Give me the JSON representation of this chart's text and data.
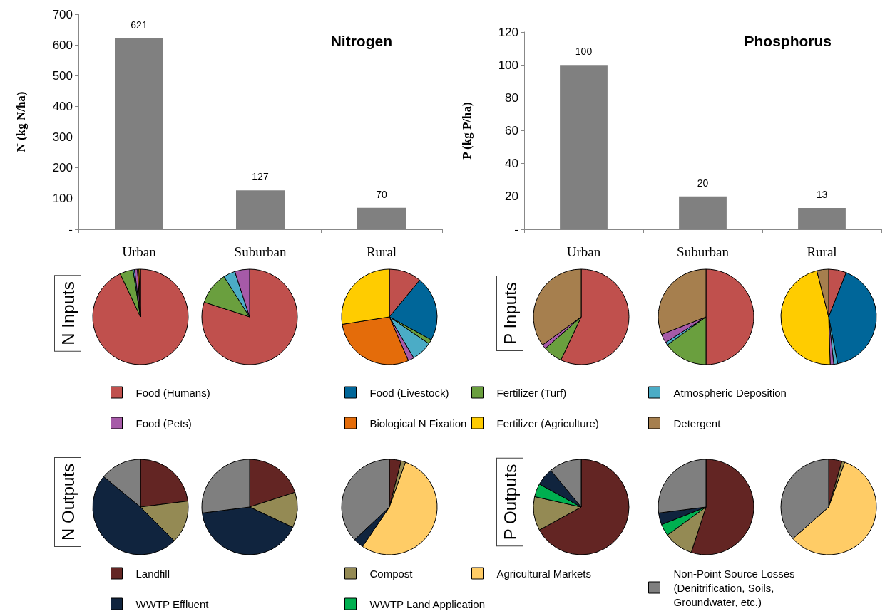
{
  "chart_data": [
    {
      "type": "bar",
      "title": "Nitrogen",
      "ylabel": "N (kg N/ha)",
      "categories": [
        "Urban",
        "Suburban",
        "Rural"
      ],
      "values": [
        621,
        127,
        70
      ],
      "color": "#808080",
      "ylim": [
        0,
        700
      ],
      "yticks": [
        {
          "value": 0,
          "label": "-"
        },
        100,
        200,
        300,
        400,
        500,
        600,
        700
      ],
      "grid": false,
      "data_labels": true
    },
    {
      "type": "bar",
      "title": "Phosphorus",
      "ylabel": "P (kg P/ha)",
      "categories": [
        "Urban",
        "Suburban",
        "Rural"
      ],
      "values": [
        100,
        20,
        13
      ],
      "color": "#808080",
      "ylim": [
        0,
        120
      ],
      "yticks": [
        {
          "value": 0,
          "label": "-"
        },
        20,
        40,
        60,
        80,
        100,
        120
      ],
      "grid": false,
      "data_labels": true
    },
    {
      "type": "pie",
      "annotations": [
        "N Inputs",
        "P Inputs"
      ],
      "legend": "bottom",
      "categories": [
        "Food (Humans)",
        "Food (Livestock)",
        "Fertilizer (Turf)",
        "Atmospheric Deposition",
        "Food (Pets)",
        "Biological N Fixation",
        "Fertilizer (Agriculture)",
        "Detergent"
      ],
      "colors": [
        "#c0504d",
        "#006699",
        "#6a9f3e",
        "#4bacc6",
        "#a65aa8",
        "#e46c0a",
        "#ffcc00",
        "#a67f4e"
      ],
      "series": [
        {
          "values": [
            93,
            0,
            4.5,
            0.5,
            1,
            0.5,
            0.5,
            0
          ]
        },
        {
          "values": [
            80,
            0,
            11,
            4,
            5,
            0,
            0,
            0
          ]
        },
        {
          "values": [
            11,
            22,
            1.5,
            7,
            2,
            29,
            27.5,
            0
          ]
        },
        {
          "values": [
            57,
            0,
            6.5,
            0,
            1.5,
            0,
            0,
            35
          ]
        },
        {
          "values": [
            50,
            0,
            15,
            1,
            3,
            0,
            0,
            31
          ]
        },
        {
          "values": [
            6,
            41,
            0,
            1.3,
            1.2,
            0,
            46.5,
            4
          ]
        }
      ]
    },
    {
      "type": "pie",
      "annotations": [
        "N Outputs",
        "P Outputs"
      ],
      "legend": "bottom",
      "categories": [
        "Landfill",
        "Compost",
        "Agricultural Markets",
        "WWTP Land Application",
        "WWTP Effluent",
        "Non-Point Source Losses\n(Denitrification, Soils,\nGroundwater, etc.)"
      ],
      "colors": [
        "#632523",
        "#948a54",
        "#ffcc66",
        "#00b050",
        "#10243e",
        "#7f7f7f"
      ],
      "series": [
        {
          "values": [
            23,
            14.5,
            0,
            0,
            48.5,
            14
          ]
        },
        {
          "values": [
            20,
            12,
            0,
            0,
            41,
            27
          ]
        },
        {
          "values": [
            4,
            1.5,
            54,
            0,
            3.5,
            37
          ]
        },
        {
          "values": [
            67,
            11.5,
            0,
            4.5,
            6,
            11
          ]
        },
        {
          "values": [
            55,
            10,
            0,
            4,
            4,
            27
          ]
        },
        {
          "values": [
            4.5,
            1,
            58,
            0,
            0,
            36.5
          ]
        }
      ]
    }
  ]
}
